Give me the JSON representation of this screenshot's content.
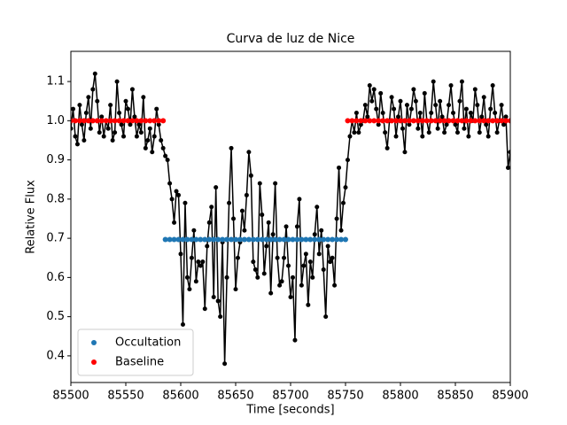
{
  "chart_data": {
    "type": "line",
    "title": "Curva de luz de Nice",
    "xlabel": "Time [seconds]",
    "ylabel": "Relative Flux",
    "xlim": [
      85500,
      85900
    ],
    "ylim": [
      0.332,
      1.177
    ],
    "xticks": [
      85500,
      85550,
      85600,
      85650,
      85700,
      85750,
      85800,
      85850,
      85900
    ],
    "yticks": [
      0.4,
      0.5,
      0.6,
      0.7,
      0.8,
      0.9,
      {
        "value": 1,
        "label": "1.0"
      },
      1.1
    ],
    "legend": "lower left",
    "series": [
      {
        "color": "#000000",
        "line": true,
        "x": [
          85500,
          85502,
          85504,
          85506,
          85508,
          85510,
          85512,
          85514,
          85516,
          85518,
          85520,
          85522,
          85524,
          85526,
          85528,
          85530,
          85532,
          85534,
          85536,
          85538,
          85540,
          85542,
          85544,
          85546,
          85548,
          85550,
          85552,
          85554,
          85556,
          85558,
          85560,
          85562,
          85564,
          85566,
          85568,
          85570,
          85572,
          85574,
          85576,
          85578,
          85580,
          85582,
          85584,
          85586,
          85588,
          85590,
          85592,
          85594,
          85596,
          85598,
          85600,
          85602,
          85604,
          85606,
          85608,
          85610,
          85612,
          85614,
          85616,
          85618,
          85620,
          85622,
          85624,
          85626,
          85628,
          85630,
          85632,
          85634,
          85636,
          85638,
          85640,
          85642,
          85644,
          85646,
          85648,
          85650,
          85652,
          85654,
          85656,
          85658,
          85660,
          85662,
          85664,
          85666,
          85668,
          85670,
          85672,
          85674,
          85676,
          85678,
          85680,
          85682,
          85684,
          85686,
          85688,
          85690,
          85692,
          85694,
          85696,
          85698,
          85700,
          85702,
          85704,
          85706,
          85708,
          85710,
          85712,
          85714,
          85716,
          85718,
          85720,
          85722,
          85724,
          85726,
          85728,
          85730,
          85732,
          85734,
          85736,
          85738,
          85740,
          85742,
          85744,
          85746,
          85748,
          85750,
          85752,
          85754,
          85756,
          85758,
          85760,
          85762,
          85764,
          85766,
          85768,
          85770,
          85772,
          85774,
          85776,
          85778,
          85780,
          85782,
          85784,
          85786,
          85788,
          85790,
          85792,
          85794,
          85796,
          85798,
          85800,
          85802,
          85804,
          85806,
          85808,
          85810,
          85812,
          85814,
          85816,
          85818,
          85820,
          85822,
          85824,
          85826,
          85828,
          85830,
          85832,
          85834,
          85836,
          85838,
          85840,
          85842,
          85844,
          85846,
          85848,
          85850,
          85852,
          85854,
          85856,
          85858,
          85860,
          85862,
          85864,
          85866,
          85868,
          85870,
          85872,
          85874,
          85876,
          85878,
          85880,
          85882,
          85884,
          85886,
          85888,
          85890,
          85892,
          85894,
          85896,
          85898,
          85900
        ],
        "values": [
          0.98,
          1.03,
          0.96,
          0.94,
          1.04,
          0.99,
          0.95,
          1.02,
          1.06,
          0.98,
          1.08,
          1.12,
          1.05,
          0.97,
          1.01,
          0.96,
          1.0,
          0.98,
          1.04,
          0.95,
          0.97,
          1.1,
          1.02,
          0.99,
          0.96,
          1.05,
          1.03,
          0.99,
          1.08,
          1.01,
          0.96,
          0.99,
          0.97,
          1.06,
          0.93,
          0.95,
          0.98,
          0.92,
          0.96,
          1.03,
          0.99,
          0.95,
          0.93,
          0.91,
          0.9,
          0.84,
          0.8,
          0.74,
          0.82,
          0.81,
          0.66,
          0.48,
          0.79,
          0.6,
          0.57,
          0.65,
          0.72,
          0.59,
          0.64,
          0.63,
          0.64,
          0.52,
          0.68,
          0.74,
          0.78,
          0.55,
          0.83,
          0.54,
          0.5,
          0.69,
          0.38,
          0.6,
          0.79,
          0.93,
          0.75,
          0.57,
          0.65,
          0.69,
          0.77,
          0.72,
          0.81,
          0.92,
          0.86,
          0.64,
          0.62,
          0.6,
          0.84,
          0.76,
          0.61,
          0.68,
          0.74,
          0.56,
          0.71,
          0.84,
          0.65,
          0.58,
          0.59,
          0.65,
          0.73,
          0.63,
          0.55,
          0.6,
          0.44,
          0.73,
          0.8,
          0.58,
          0.63,
          0.66,
          0.53,
          0.64,
          0.6,
          0.71,
          0.78,
          0.66,
          0.72,
          0.62,
          0.5,
          0.68,
          0.64,
          0.65,
          0.58,
          0.75,
          0.88,
          0.72,
          0.79,
          0.83,
          0.9,
          0.96,
          1.0,
          0.97,
          1.02,
          0.97,
          0.99,
          1.0,
          1.04,
          1.01,
          1.09,
          1.05,
          1.08,
          1.03,
          0.99,
          1.07,
          1.02,
          0.97,
          0.93,
          1.0,
          1.06,
          1.03,
          0.96,
          1.01,
          1.05,
          0.98,
          0.92,
          1.04,
          0.99,
          1.03,
          1.08,
          1.05,
          0.98,
          1.02,
          0.96,
          1.07,
          1.0,
          0.97,
          1.02,
          1.1,
          1.04,
          0.98,
          1.05,
          1.01,
          0.97,
          0.99,
          1.04,
          1.09,
          1.02,
          0.99,
          0.97,
          1.05,
          1.1,
          0.98,
          1.03,
          0.96,
          1.02,
          1.0,
          1.08,
          1.04,
          0.97,
          1.01,
          1.06,
          0.99,
          0.96,
          1.03,
          1.09,
          1.02,
          0.97,
          1.0,
          1.04,
          0.99,
          1.01,
          0.88,
          0.92
        ]
      },
      {
        "name": "Occultation",
        "color": "#1f77b4",
        "line": false,
        "x": [
          85586,
          85590,
          85594,
          85598,
          85602,
          85606,
          85610,
          85614,
          85618,
          85622,
          85626,
          85630,
          85634,
          85638,
          85642,
          85646,
          85650,
          85654,
          85658,
          85662,
          85666,
          85670,
          85674,
          85678,
          85682,
          85686,
          85690,
          85694,
          85698,
          85702,
          85706,
          85710,
          85714,
          85718,
          85722,
          85726,
          85730,
          85734,
          85738,
          85742,
          85746,
          85750
        ],
        "values": [
          0.697,
          0.697,
          0.697,
          0.697,
          0.697,
          0.697,
          0.697,
          0.697,
          0.697,
          0.697,
          0.697,
          0.697,
          0.697,
          0.697,
          0.697,
          0.697,
          0.697,
          0.697,
          0.697,
          0.697,
          0.697,
          0.697,
          0.697,
          0.697,
          0.697,
          0.697,
          0.697,
          0.697,
          0.697,
          0.697,
          0.697,
          0.697,
          0.697,
          0.697,
          0.697,
          0.697,
          0.697,
          0.697,
          0.697,
          0.697,
          0.697,
          0.697
        ]
      },
      {
        "name": "Baseline",
        "color": "#ff0000",
        "line": false,
        "x": [
          85500,
          85504,
          85508,
          85512,
          85516,
          85520,
          85524,
          85528,
          85532,
          85536,
          85540,
          85544,
          85548,
          85552,
          85556,
          85560,
          85564,
          85568,
          85572,
          85576,
          85580,
          85584,
          85752,
          85756,
          85760,
          85764,
          85768,
          85772,
          85776,
          85780,
          85784,
          85788,
          85792,
          85796,
          85800,
          85804,
          85808,
          85812,
          85816,
          85820,
          85824,
          85828,
          85832,
          85836,
          85840,
          85844,
          85848,
          85852,
          85856,
          85860,
          85864,
          85868,
          85872,
          85876,
          85880,
          85884,
          85888,
          85892,
          85896,
          85900
        ],
        "values": [
          1,
          1,
          1,
          1,
          1,
          1,
          1,
          1,
          1,
          1,
          1,
          1,
          1,
          1,
          1,
          1,
          1,
          1,
          1,
          1,
          1,
          1,
          1,
          1,
          1,
          1,
          1,
          1,
          1,
          1,
          1,
          1,
          1,
          1,
          1,
          1,
          1,
          1,
          1,
          1,
          1,
          1,
          1,
          1,
          1,
          1,
          1,
          1,
          1,
          1,
          1,
          1,
          1,
          1,
          1,
          1,
          1,
          1,
          1,
          1
        ]
      }
    ]
  }
}
